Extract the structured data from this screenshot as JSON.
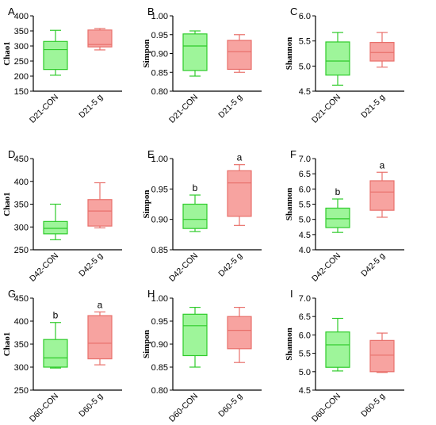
{
  "colors": {
    "con_fill": "#9ef59a",
    "con_stroke": "#2ecb2a",
    "trt_fill": "#f7a3a0",
    "trt_stroke": "#e8706b"
  },
  "chart_data": [
    {
      "letter": "A",
      "type": "box",
      "ylabel": "Chao1",
      "ylim": [
        150,
        400
      ],
      "yticks": [
        150,
        200,
        250,
        300,
        350,
        400
      ],
      "categories": [
        "D21-CON",
        "D21-5 g"
      ],
      "boxes": [
        {
          "min": 203,
          "q1": 222,
          "median": 288,
          "q3": 315,
          "max": 352
        },
        {
          "min": 287,
          "q1": 297,
          "median": 305,
          "q3": 353,
          "max": 358
        }
      ],
      "significance": [
        "",
        ""
      ]
    },
    {
      "letter": "B",
      "type": "box",
      "ylabel": "Simpon",
      "ylim": [
        0.8,
        1.0
      ],
      "yticks": [
        0.8,
        0.85,
        0.9,
        0.95,
        1.0
      ],
      "categories": [
        "D21-CON",
        "D21-5 g"
      ],
      "boxes": [
        {
          "min": 0.84,
          "q1": 0.855,
          "median": 0.92,
          "q3": 0.952,
          "max": 0.96
        },
        {
          "min": 0.85,
          "q1": 0.858,
          "median": 0.905,
          "q3": 0.935,
          "max": 0.95
        }
      ],
      "significance": [
        "",
        ""
      ]
    },
    {
      "letter": "C",
      "type": "box",
      "ylabel": "Shannon",
      "ylim": [
        4.5,
        6.0
      ],
      "yticks": [
        4.5,
        5.0,
        5.5,
        6.0
      ],
      "categories": [
        "D21-CON",
        "D21-5 g"
      ],
      "boxes": [
        {
          "min": 4.62,
          "q1": 4.82,
          "median": 5.1,
          "q3": 5.48,
          "max": 5.67
        },
        {
          "min": 4.98,
          "q1": 5.1,
          "median": 5.27,
          "q3": 5.47,
          "max": 5.67
        }
      ],
      "significance": [
        "",
        ""
      ]
    },
    {
      "letter": "D",
      "type": "box",
      "ylabel": "Chao1",
      "ylim": [
        250,
        450
      ],
      "yticks": [
        250,
        300,
        350,
        400,
        450
      ],
      "categories": [
        "D42-CON",
        "D42-5 g"
      ],
      "boxes": [
        {
          "min": 272,
          "q1": 285,
          "median": 297,
          "q3": 312,
          "max": 350
        },
        {
          "min": 298,
          "q1": 302,
          "median": 335,
          "q3": 360,
          "max": 397
        }
      ],
      "significance": [
        "",
        ""
      ]
    },
    {
      "letter": "E",
      "type": "box",
      "ylabel": "Simpon",
      "ylim": [
        0.85,
        1.0
      ],
      "yticks": [
        0.85,
        0.9,
        0.95,
        1.0
      ],
      "categories": [
        "D42-CON",
        "D42-5 g"
      ],
      "boxes": [
        {
          "min": 0.88,
          "q1": 0.885,
          "median": 0.9,
          "q3": 0.925,
          "max": 0.94
        },
        {
          "min": 0.89,
          "q1": 0.905,
          "median": 0.96,
          "q3": 0.98,
          "max": 0.99
        }
      ],
      "significance": [
        "b",
        "a"
      ]
    },
    {
      "letter": "F",
      "type": "box",
      "ylabel": "Shannon",
      "ylim": [
        4.0,
        7.0
      ],
      "yticks": [
        4.0,
        4.5,
        5.0,
        5.5,
        6.0,
        6.5,
        7.0
      ],
      "categories": [
        "D42-CON",
        "D42-5 g"
      ],
      "boxes": [
        {
          "min": 4.57,
          "q1": 4.73,
          "median": 5.02,
          "q3": 5.37,
          "max": 5.67
        },
        {
          "min": 5.07,
          "q1": 5.3,
          "median": 5.9,
          "q3": 6.27,
          "max": 6.55
        }
      ],
      "significance": [
        "b",
        "a"
      ]
    },
    {
      "letter": "G",
      "type": "box",
      "ylabel": "Chao1",
      "ylim": [
        250,
        450
      ],
      "yticks": [
        250,
        300,
        350,
        400,
        450
      ],
      "categories": [
        "D60-CON",
        "D60-5 g"
      ],
      "boxes": [
        {
          "min": 298,
          "q1": 300,
          "median": 320,
          "q3": 360,
          "max": 397
        },
        {
          "min": 305,
          "q1": 318,
          "median": 352,
          "q3": 412,
          "max": 420
        }
      ],
      "significance": [
        "b",
        "a"
      ]
    },
    {
      "letter": "H",
      "type": "box",
      "ylabel": "Simpon",
      "ylim": [
        0.8,
        1.0
      ],
      "yticks": [
        0.8,
        0.85,
        0.9,
        0.95,
        1.0
      ],
      "categories": [
        "D60-CON",
        "D60-5 g"
      ],
      "boxes": [
        {
          "min": 0.85,
          "q1": 0.875,
          "median": 0.94,
          "q3": 0.965,
          "max": 0.98
        },
        {
          "min": 0.86,
          "q1": 0.89,
          "median": 0.93,
          "q3": 0.96,
          "max": 0.98
        }
      ],
      "significance": [
        "",
        ""
      ]
    },
    {
      "letter": "I",
      "type": "box",
      "ylabel": "Shannon",
      "ylim": [
        4.5,
        7.0
      ],
      "yticks": [
        4.5,
        5.0,
        5.5,
        6.0,
        6.5,
        7.0
      ],
      "categories": [
        "D60-CON",
        "D60-5 g"
      ],
      "boxes": [
        {
          "min": 5.02,
          "q1": 5.12,
          "median": 5.73,
          "q3": 6.08,
          "max": 6.45
        },
        {
          "min": 4.98,
          "q1": 5.0,
          "median": 5.45,
          "q3": 5.85,
          "max": 6.05
        }
      ],
      "significance": [
        "",
        ""
      ]
    }
  ]
}
